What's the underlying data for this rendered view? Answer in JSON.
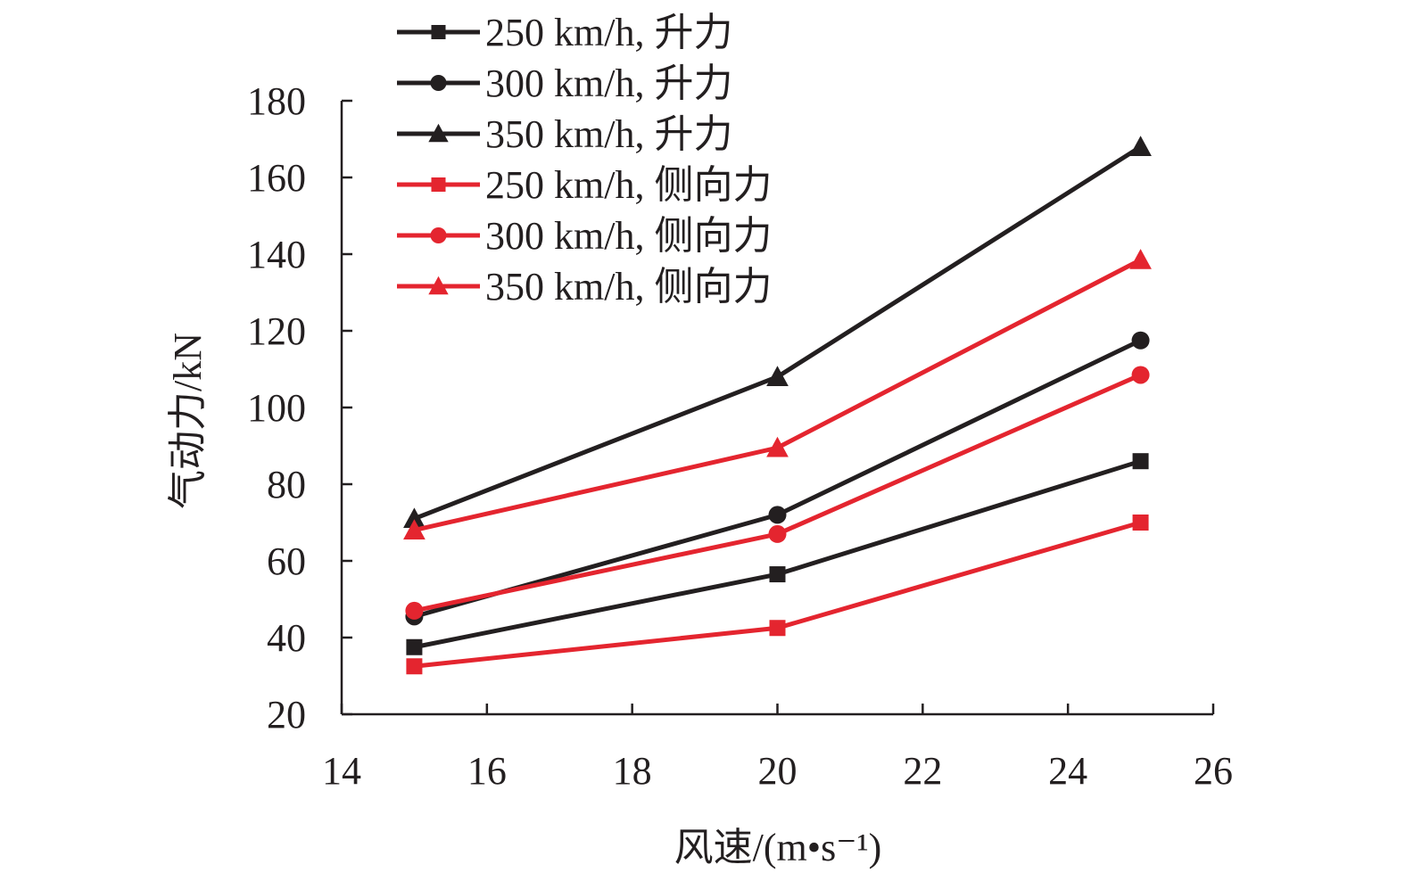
{
  "chart_data": {
    "type": "line",
    "xlabel": "风速/(m•s⁻¹)",
    "ylabel": "气动力/kN",
    "xlim": [
      14,
      26
    ],
    "ylim": [
      20,
      180
    ],
    "x_ticks": [
      14,
      16,
      18,
      20,
      22,
      24,
      26
    ],
    "y_ticks": [
      20,
      40,
      60,
      80,
      100,
      120,
      140,
      160,
      180
    ],
    "x": [
      15,
      20,
      25
    ],
    "legend_position": "top-left",
    "grid": false,
    "series": [
      {
        "name": "250 km/h, 升力",
        "marker": "square",
        "color": "#231f20",
        "values": [
          37.5,
          56.5,
          86
        ]
      },
      {
        "name": "300 km/h, 升力",
        "marker": "circle",
        "color": "#231f20",
        "values": [
          45.5,
          72,
          117.5
        ]
      },
      {
        "name": "350 km/h, 升力",
        "marker": "triangle",
        "color": "#231f20",
        "values": [
          71,
          108,
          168
        ]
      },
      {
        "name": "250 km/h, 侧向力",
        "marker": "square",
        "color": "#e4252f",
        "values": [
          32.5,
          42.5,
          70
        ]
      },
      {
        "name": "300 km/h, 侧向力",
        "marker": "circle",
        "color": "#e4252f",
        "values": [
          47,
          67,
          108.5
        ]
      },
      {
        "name": "350 km/h, 侧向力",
        "marker": "triangle",
        "color": "#e4252f",
        "values": [
          68,
          89.5,
          138.5
        ]
      }
    ]
  }
}
